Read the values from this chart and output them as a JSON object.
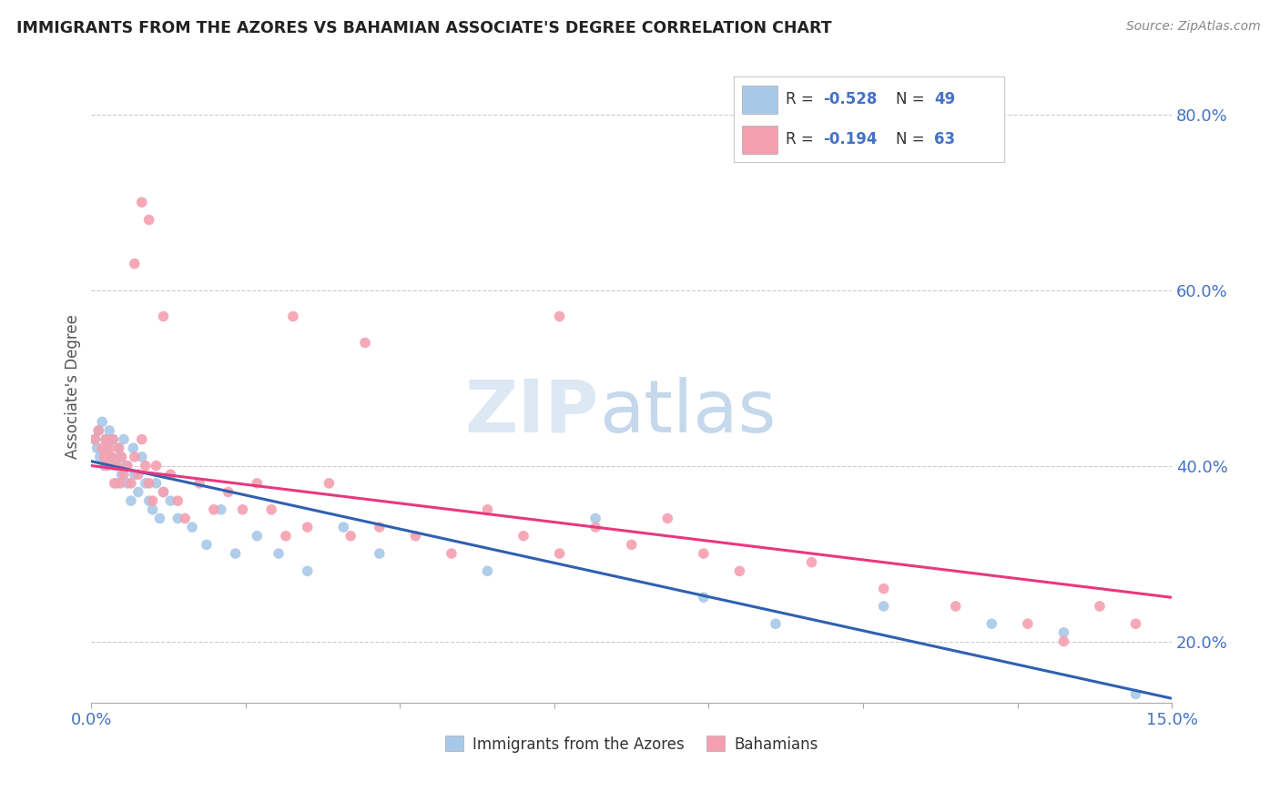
{
  "title": "IMMIGRANTS FROM THE AZORES VS BAHAMIAN ASSOCIATE'S DEGREE CORRELATION CHART",
  "source": "Source: ZipAtlas.com",
  "ylabel": "Associate's Degree",
  "legend_blue_label": "Immigrants from the Azores",
  "legend_pink_label": "Bahamians",
  "xlim": [
    0.0,
    15.0
  ],
  "ylim": [
    13.0,
    85.0
  ],
  "yticks": [
    20.0,
    40.0,
    60.0,
    80.0
  ],
  "xticks": [
    0.0,
    2.142857,
    4.285714,
    6.428571,
    8.571429,
    10.714286,
    12.857143,
    15.0
  ],
  "blue_color": "#a8c8e8",
  "pink_color": "#f4a0b0",
  "blue_line_color": "#3060b0",
  "pink_line_color": "#e83880",
  "blue_r": "-0.528",
  "blue_n": "49",
  "pink_r": "-0.194",
  "pink_n": "63",
  "blue_scatter_x": [
    0.05,
    0.08,
    0.1,
    0.12,
    0.15,
    0.18,
    0.2,
    0.22,
    0.25,
    0.28,
    0.3,
    0.32,
    0.35,
    0.38,
    0.4,
    0.42,
    0.45,
    0.48,
    0.5,
    0.55,
    0.58,
    0.6,
    0.65,
    0.7,
    0.75,
    0.8,
    0.85,
    0.9,
    0.95,
    1.0,
    1.1,
    1.2,
    1.4,
    1.6,
    1.8,
    2.0,
    2.3,
    2.6,
    3.0,
    3.5,
    4.0,
    5.5,
    7.0,
    8.5,
    9.5,
    11.0,
    12.5,
    13.5,
    14.5
  ],
  "blue_scatter_y": [
    43.0,
    42.0,
    44.0,
    41.0,
    45.0,
    40.0,
    43.0,
    42.0,
    44.0,
    41.0,
    43.0,
    40.0,
    38.0,
    42.0,
    41.0,
    39.0,
    43.0,
    40.0,
    38.0,
    36.0,
    42.0,
    39.0,
    37.0,
    41.0,
    38.0,
    36.0,
    35.0,
    38.0,
    34.0,
    37.0,
    36.0,
    34.0,
    33.0,
    31.0,
    35.0,
    30.0,
    32.0,
    30.0,
    28.0,
    33.0,
    30.0,
    28.0,
    34.0,
    25.0,
    22.0,
    24.0,
    22.0,
    21.0,
    14.0
  ],
  "pink_scatter_x": [
    0.05,
    0.1,
    0.15,
    0.18,
    0.2,
    0.22,
    0.25,
    0.28,
    0.3,
    0.32,
    0.35,
    0.38,
    0.4,
    0.42,
    0.45,
    0.5,
    0.55,
    0.6,
    0.65,
    0.7,
    0.75,
    0.8,
    0.85,
    0.9,
    1.0,
    1.1,
    1.2,
    1.3,
    1.5,
    1.7,
    1.9,
    2.1,
    2.3,
    2.5,
    2.7,
    3.0,
    3.3,
    3.6,
    4.0,
    4.5,
    5.0,
    5.5,
    6.0,
    6.5,
    7.0,
    7.5,
    8.0,
    8.5,
    9.0,
    10.0,
    11.0,
    12.0,
    13.0,
    13.5,
    14.0,
    14.5,
    0.6,
    0.7,
    0.8,
    1.0,
    2.8,
    3.8,
    6.5
  ],
  "pink_scatter_y": [
    43.0,
    44.0,
    42.0,
    41.0,
    43.0,
    40.0,
    42.0,
    41.0,
    43.0,
    38.0,
    40.0,
    42.0,
    38.0,
    41.0,
    39.0,
    40.0,
    38.0,
    41.0,
    39.0,
    43.0,
    40.0,
    38.0,
    36.0,
    40.0,
    37.0,
    39.0,
    36.0,
    34.0,
    38.0,
    35.0,
    37.0,
    35.0,
    38.0,
    35.0,
    32.0,
    33.0,
    38.0,
    32.0,
    33.0,
    32.0,
    30.0,
    35.0,
    32.0,
    30.0,
    33.0,
    31.0,
    34.0,
    30.0,
    28.0,
    29.0,
    26.0,
    24.0,
    22.0,
    20.0,
    24.0,
    22.0,
    63.0,
    70.0,
    68.0,
    57.0,
    57.0,
    54.0,
    57.0
  ]
}
